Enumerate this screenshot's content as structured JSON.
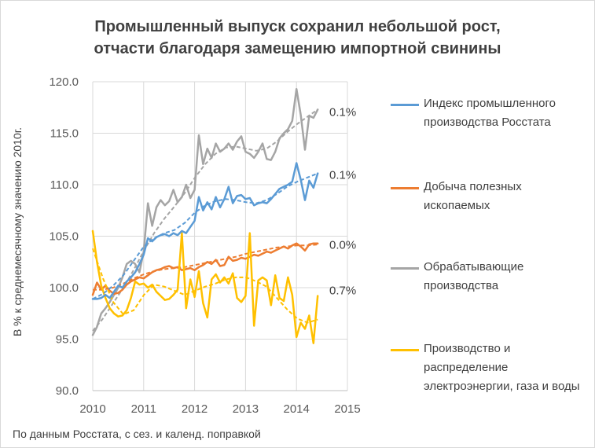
{
  "title_line1": "Промышленный выпуск сохранил небольшой рост,",
  "title_line2": "отчасти благодаря замещению импортной свинины",
  "source_note": "По данным Росстата, с сез. и календ. поправкой",
  "chart_data": {
    "type": "line",
    "title": "Промышленный выпуск сохранил небольшой рост, отчасти благодаря замещению импортной свинины",
    "xlabel": "",
    "ylabel": "В % к среднемесячному значению 2010г.",
    "xlim": [
      2010,
      2015
    ],
    "ylim": [
      90,
      120
    ],
    "x_ticks": [
      2010,
      2011,
      2012,
      2013,
      2014,
      2015
    ],
    "x_tick_labels": [
      "2010",
      "2011",
      "2012",
      "2013",
      "2014",
      "2015"
    ],
    "y_ticks": [
      90,
      95,
      100,
      105,
      110,
      115,
      120
    ],
    "y_tick_labels": [
      "90.0",
      "95.0",
      "100.0",
      "105.0",
      "110.0",
      "115.0",
      "120.0"
    ],
    "grid": true,
    "legend_position": "right",
    "series": [
      {
        "name": "Индекс промышленного производства Росстата",
        "color": "#5b9bd5",
        "end_label": "0.1%",
        "x": [
          2010.0,
          2010.083,
          2010.167,
          2010.25,
          2010.333,
          2010.417,
          2010.5,
          2010.583,
          2010.667,
          2010.75,
          2010.833,
          2010.917,
          2011.0,
          2011.083,
          2011.167,
          2011.25,
          2011.333,
          2011.417,
          2011.5,
          2011.583,
          2011.667,
          2011.75,
          2011.833,
          2011.917,
          2012.0,
          2012.083,
          2012.167,
          2012.25,
          2012.333,
          2012.417,
          2012.5,
          2012.583,
          2012.667,
          2012.75,
          2012.833,
          2012.917,
          2013.0,
          2013.083,
          2013.167,
          2013.25,
          2013.333,
          2013.417,
          2013.5,
          2013.583,
          2013.667,
          2013.75,
          2013.833,
          2013.917,
          2014.0,
          2014.083,
          2014.167,
          2014.25,
          2014.333,
          2014.417
        ],
        "values": [
          98.9,
          98.9,
          99.0,
          99.3,
          99.0,
          99.6,
          100.2,
          100.0,
          100.6,
          101.0,
          101.5,
          102.3,
          103.2,
          104.8,
          104.5,
          104.9,
          105.1,
          105.2,
          105.0,
          105.3,
          105.1,
          105.5,
          105.3,
          105.9,
          106.5,
          108.8,
          107.5,
          108.3,
          107.6,
          108.8,
          107.8,
          108.6,
          109.8,
          108.2,
          108.9,
          109.0,
          108.6,
          108.7,
          108.0,
          108.2,
          108.3,
          108.2,
          108.6,
          109.1,
          109.6,
          109.8,
          110.0,
          110.3,
          112.1,
          110.5,
          108.5,
          110.4,
          109.7,
          111.1
        ],
        "trend_values": [
          98.9,
          99.4,
          100.2,
          101.2,
          102.6,
          104.0,
          104.8,
          105.3,
          105.6,
          106.3,
          107.3,
          108.0,
          108.4,
          108.6,
          108.5,
          108.3,
          108.2,
          108.5,
          109.1,
          109.8,
          110.3,
          110.7,
          111.1
        ]
      },
      {
        "name": "Добыча полезных ископаемых",
        "color": "#ed7d31",
        "end_label": "0.0%",
        "x": [
          2010.0,
          2010.083,
          2010.167,
          2010.25,
          2010.333,
          2010.417,
          2010.5,
          2010.583,
          2010.667,
          2010.75,
          2010.833,
          2010.917,
          2011.0,
          2011.083,
          2011.167,
          2011.25,
          2011.333,
          2011.417,
          2011.5,
          2011.583,
          2011.667,
          2011.75,
          2011.833,
          2011.917,
          2012.0,
          2012.083,
          2012.167,
          2012.25,
          2012.333,
          2012.417,
          2012.5,
          2012.583,
          2012.667,
          2012.75,
          2012.833,
          2012.917,
          2013.0,
          2013.083,
          2013.167,
          2013.25,
          2013.333,
          2013.417,
          2013.5,
          2013.583,
          2013.667,
          2013.75,
          2013.833,
          2013.917,
          2014.0,
          2014.083,
          2014.167,
          2014.25,
          2014.333,
          2014.417
        ],
        "values": [
          99.3,
          100.5,
          99.8,
          100.2,
          99.7,
          99.4,
          99.5,
          99.8,
          100.3,
          100.6,
          100.8,
          101.0,
          100.9,
          101.2,
          101.5,
          101.7,
          101.8,
          102.0,
          102.1,
          101.9,
          102.0,
          101.7,
          101.8,
          101.9,
          101.7,
          102.0,
          102.2,
          102.5,
          102.3,
          102.7,
          102.1,
          102.2,
          103.0,
          102.6,
          102.7,
          102.9,
          102.8,
          103.0,
          103.2,
          103.1,
          103.3,
          103.5,
          103.4,
          103.6,
          103.8,
          104.0,
          103.8,
          104.1,
          104.3,
          104.0,
          103.6,
          104.2,
          104.3,
          104.3
        ],
        "trend_values": [
          99.8,
          99.8,
          100.0,
          100.4,
          100.9,
          101.3,
          101.6,
          101.8,
          101.9,
          102.0,
          102.2,
          102.4,
          102.6,
          102.8,
          103.0,
          103.3,
          103.5,
          103.7,
          103.9,
          104.0,
          104.1,
          104.1,
          104.2
        ]
      },
      {
        "name": "Обрабатывающие производства",
        "color": "#a5a5a5",
        "end_label": "0.1%",
        "x": [
          2010.0,
          2010.083,
          2010.167,
          2010.25,
          2010.333,
          2010.417,
          2010.5,
          2010.583,
          2010.667,
          2010.75,
          2010.833,
          2010.917,
          2011.0,
          2011.083,
          2011.167,
          2011.25,
          2011.333,
          2011.417,
          2011.5,
          2011.583,
          2011.667,
          2011.75,
          2011.833,
          2011.917,
          2012.0,
          2012.083,
          2012.167,
          2012.25,
          2012.333,
          2012.417,
          2012.5,
          2012.583,
          2012.667,
          2012.75,
          2012.833,
          2012.917,
          2013.0,
          2013.083,
          2013.167,
          2013.25,
          2013.333,
          2013.417,
          2013.5,
          2013.583,
          2013.667,
          2013.75,
          2013.833,
          2013.917,
          2014.0,
          2014.083,
          2014.167,
          2014.25,
          2014.333,
          2014.417
        ],
        "values": [
          95.4,
          96.2,
          97.5,
          98.0,
          98.6,
          99.3,
          100.0,
          101.0,
          102.3,
          102.6,
          102.3,
          101.5,
          103.5,
          108.2,
          106.0,
          107.8,
          108.5,
          108.0,
          108.4,
          109.5,
          108.3,
          108.8,
          110.0,
          108.7,
          109.5,
          114.8,
          112.0,
          113.5,
          112.6,
          114.0,
          113.2,
          113.5,
          114.0,
          113.4,
          114.2,
          114.7,
          113.2,
          113.0,
          112.6,
          113.2,
          114.0,
          112.5,
          112.4,
          113.2,
          114.5,
          115.0,
          115.4,
          116.2,
          119.3,
          116.8,
          113.4,
          116.7,
          116.5,
          117.3
        ],
        "trend_values": [
          95.8,
          97.0,
          98.5,
          100.0,
          101.7,
          103.6,
          105.3,
          106.7,
          107.9,
          109.2,
          110.7,
          112.0,
          113.0,
          113.6,
          113.7,
          113.5,
          113.3,
          113.5,
          114.2,
          115.1,
          115.9,
          116.6,
          117.3
        ]
      },
      {
        "name": "Производство и распределение электроэнергии, газа и воды",
        "color": "#ffc000",
        "end_label": "0.7%",
        "x": [
          2010.0,
          2010.083,
          2010.167,
          2010.25,
          2010.333,
          2010.417,
          2010.5,
          2010.583,
          2010.667,
          2010.75,
          2010.833,
          2010.917,
          2011.0,
          2011.083,
          2011.167,
          2011.25,
          2011.333,
          2011.417,
          2011.5,
          2011.583,
          2011.667,
          2011.75,
          2011.833,
          2011.917,
          2012.0,
          2012.083,
          2012.167,
          2012.25,
          2012.333,
          2012.417,
          2012.5,
          2012.583,
          2012.667,
          2012.75,
          2012.833,
          2012.917,
          2013.0,
          2013.083,
          2013.167,
          2013.25,
          2013.333,
          2013.417,
          2013.5,
          2013.583,
          2013.667,
          2013.75,
          2013.833,
          2013.917,
          2014.0,
          2014.083,
          2014.167,
          2014.25,
          2014.333,
          2014.417
        ],
        "values": [
          105.5,
          102.5,
          100.2,
          99.0,
          98.0,
          97.5,
          97.2,
          97.3,
          97.8,
          99.0,
          100.6,
          100.3,
          100.4,
          100.0,
          100.3,
          99.6,
          99.2,
          98.8,
          98.9,
          99.3,
          99.8,
          105.3,
          98.0,
          100.8,
          99.1,
          101.6,
          98.5,
          97.1,
          100.8,
          101.3,
          100.5,
          101.0,
          100.4,
          101.4,
          99.0,
          98.6,
          99.2,
          105.3,
          96.3,
          100.7,
          101.0,
          100.7,
          98.3,
          101.2,
          99.0,
          98.7,
          101.0,
          99.3,
          95.2,
          96.6,
          96.0,
          97.3,
          94.6,
          99.2
        ],
        "trend_values": [
          103.8,
          100.9,
          98.6,
          97.4,
          97.8,
          99.3,
          100.3,
          100.1,
          99.7,
          99.3,
          99.7,
          100.1,
          100.4,
          100.8,
          101.0,
          101.0,
          100.6,
          100.1,
          99.0,
          97.9,
          97.0,
          96.6,
          96.9
        ]
      }
    ]
  }
}
